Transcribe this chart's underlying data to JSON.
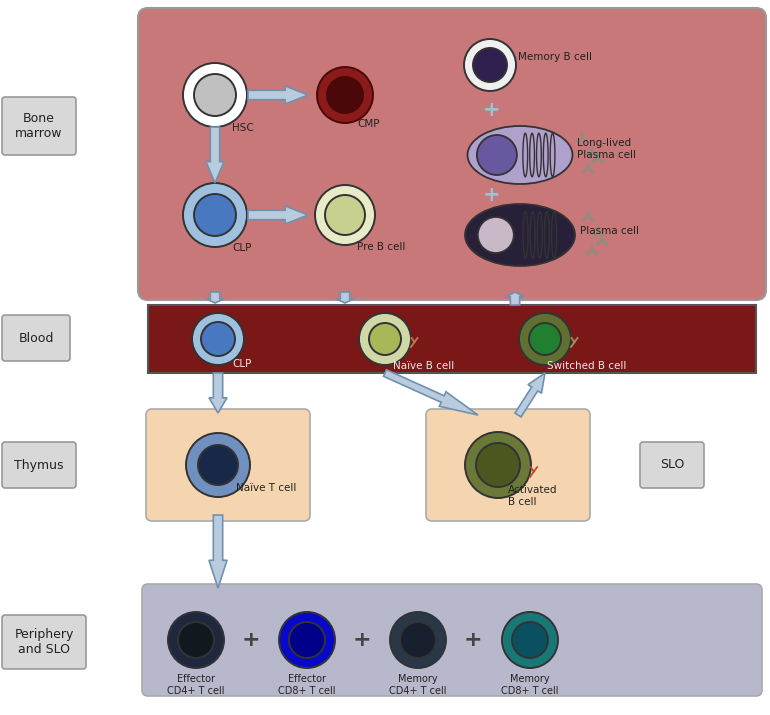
{
  "bg_color": "#ffffff",
  "bone_marrow_bg": "#c87878",
  "blood_bg": "#7a1818",
  "thymus_bg": "#f5d5b0",
  "slo_bg": "#f5d5b0",
  "periphery_bg": "#b8b8cc",
  "label_box_bg": "#d8d8d8",
  "label_box_edge": "#999999",
  "hsc_outer": "#ffffff",
  "hsc_inner": "#c0c0c0",
  "cmp_outer": "#8b1a1a",
  "cmp_inner": "#4a0808",
  "clp_outer": "#a0c0e0",
  "clp_inner": "#4878c0",
  "preb_outer": "#e8eac8",
  "preb_inner": "#c8d090",
  "memory_b_outer": "#f0f0f0",
  "memory_b_inner": "#302050",
  "longlived_plasma_body": "#b0a0cc",
  "longlived_plasma_nucleus": "#6858a0",
  "plasma_body": "#282038",
  "plasma_nucleus": "#c8b8c8",
  "naive_b_outer": "#d0d8a8",
  "naive_b_inner": "#a8b858",
  "switched_b_outer": "#607030",
  "switched_b_inner": "#208030",
  "naive_t_outer": "#7090c0",
  "naive_t_inner": "#182848",
  "activated_b_outer": "#6a7838",
  "activated_b_inner": "#4a5820",
  "eff_cd4_outer": "#202840",
  "eff_cd4_inner": "#101820",
  "eff_cd8_outer": "#0808c8",
  "eff_cd8_inner": "#000088",
  "mem_cd4_outer": "#283848",
  "mem_cd4_inner": "#182030",
  "mem_cd8_outer": "#187878",
  "mem_cd8_inner": "#0a5060",
  "arrow_fill": "#b8ccdd",
  "arrow_edge": "#7090b0",
  "antibody_color": "#8a8f80",
  "plus_color": "#a0c0d8",
  "bone_marrow_label": "Bone\nmarrow",
  "blood_label": "Blood",
  "thymus_label": "Thymus",
  "slo_label": "SLO",
  "periphery_label": "Periphery\nand SLO"
}
